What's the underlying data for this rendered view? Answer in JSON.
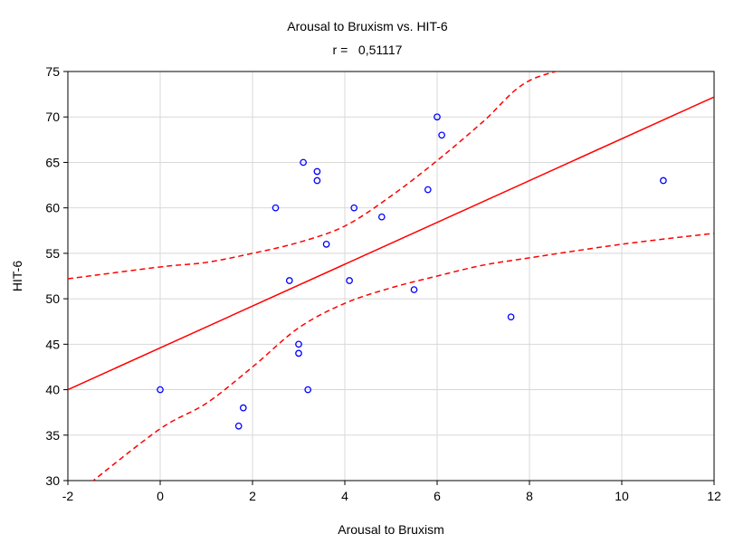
{
  "chart_data": {
    "type": "scatter",
    "title": "Arousal to Bruxism vs. HIT-6",
    "subtitle": "r =   0,51117",
    "xlabel": "Arousal to Bruxism",
    "ylabel": "HIT-6",
    "xlim": [
      -2,
      12
    ],
    "ylim": [
      30,
      75
    ],
    "xticks": [
      -2,
      0,
      2,
      4,
      6,
      8,
      10,
      12
    ],
    "yticks": [
      30,
      35,
      40,
      45,
      50,
      55,
      60,
      65,
      70,
      75
    ],
    "grid": true,
    "points": [
      {
        "x": 0.0,
        "y": 40
      },
      {
        "x": 1.7,
        "y": 36
      },
      {
        "x": 1.8,
        "y": 38
      },
      {
        "x": 2.5,
        "y": 60
      },
      {
        "x": 2.8,
        "y": 52
      },
      {
        "x": 3.0,
        "y": 45
      },
      {
        "x": 3.0,
        "y": 44
      },
      {
        "x": 3.1,
        "y": 65
      },
      {
        "x": 3.2,
        "y": 40
      },
      {
        "x": 3.4,
        "y": 64
      },
      {
        "x": 3.4,
        "y": 63
      },
      {
        "x": 3.6,
        "y": 56
      },
      {
        "x": 4.1,
        "y": 52
      },
      {
        "x": 4.2,
        "y": 60
      },
      {
        "x": 4.8,
        "y": 59
      },
      {
        "x": 5.5,
        "y": 51
      },
      {
        "x": 5.8,
        "y": 62
      },
      {
        "x": 6.0,
        "y": 70
      },
      {
        "x": 6.1,
        "y": 68
      },
      {
        "x": 7.6,
        "y": 48
      },
      {
        "x": 10.9,
        "y": 63
      }
    ],
    "regression": {
      "x": [
        -2,
        12
      ],
      "y": [
        40.0,
        72.2
      ]
    },
    "confidence_upper": {
      "x": [
        -2,
        0,
        1,
        2,
        3,
        4,
        5,
        6,
        7,
        8,
        9.5
      ],
      "y": [
        52.2,
        53.5,
        54.0,
        55.0,
        56.2,
        58.0,
        61.3,
        65.2,
        69.5,
        74.0,
        76.0
      ]
    },
    "confidence_lower": {
      "x": [
        -1.5,
        0,
        1,
        2,
        3,
        4,
        5,
        6,
        7,
        8,
        10,
        12
      ],
      "y": [
        29.8,
        35.7,
        38.5,
        42.5,
        46.8,
        49.5,
        51.2,
        52.5,
        53.7,
        54.5,
        56.0,
        57.2
      ]
    },
    "colors": {
      "points": "#0000ff",
      "fit": "#ff0000",
      "grid": "#d8d8d8"
    }
  }
}
